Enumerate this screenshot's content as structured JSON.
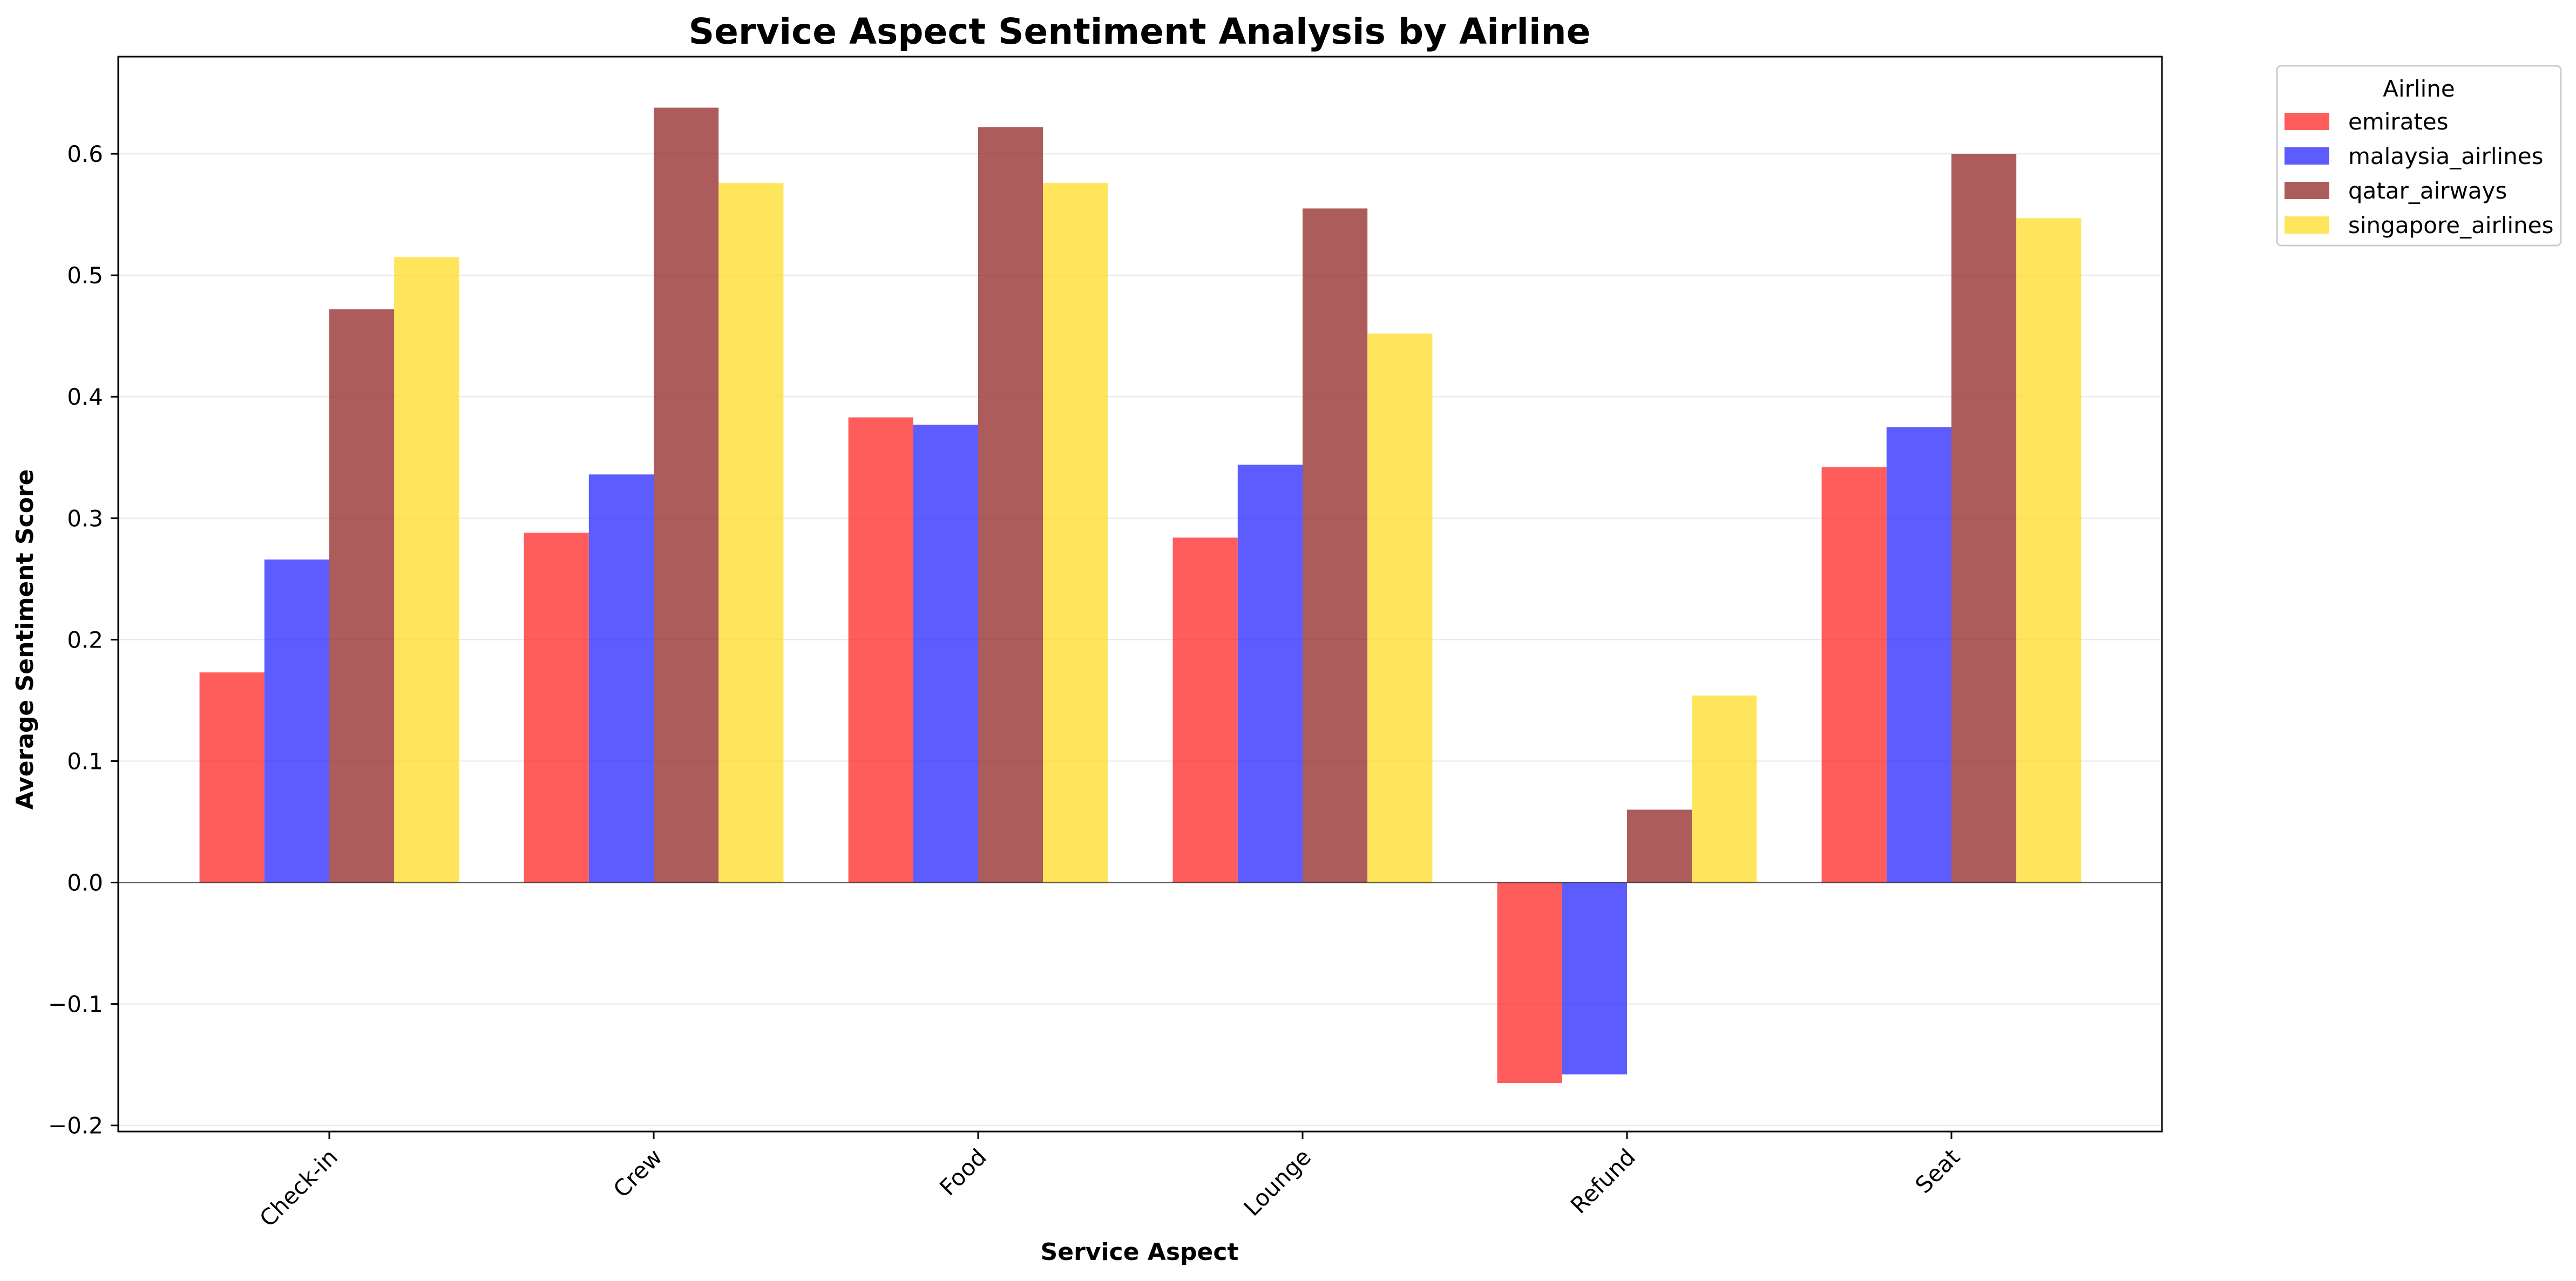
{
  "chart_data": {
    "type": "bar",
    "title": "Service Aspect Sentiment Analysis by Airline",
    "xlabel": "Service Aspect",
    "ylabel": "Average Sentiment Score",
    "categories": [
      "Check-in",
      "Crew",
      "Food",
      "Lounge",
      "Refund",
      "Seat"
    ],
    "series": [
      {
        "name": "emirates",
        "color": "#ff3333",
        "values": [
          0.173,
          0.288,
          0.383,
          0.284,
          -0.165,
          0.342
        ]
      },
      {
        "name": "malaysia_airlines",
        "color": "#3333ff",
        "values": [
          0.266,
          0.336,
          0.377,
          0.344,
          -0.158,
          0.375
        ]
      },
      {
        "name": "qatar_airways",
        "color": "#993333",
        "values": [
          0.472,
          0.638,
          0.622,
          0.555,
          0.06,
          0.6
        ]
      },
      {
        "name": "singapore_airlines",
        "color": "#ffdf33",
        "values": [
          0.515,
          0.576,
          0.576,
          0.452,
          0.154,
          0.547
        ]
      }
    ],
    "ylim": [
      -0.205,
      0.68
    ],
    "yticks": [
      -0.2,
      -0.1,
      0.0,
      0.1,
      0.2,
      0.3,
      0.4,
      0.5,
      0.6
    ],
    "ytick_labels": [
      "−0.2",
      "−0.1",
      "0.0",
      "0.1",
      "0.2",
      "0.3",
      "0.4",
      "0.5",
      "0.6"
    ],
    "grid": "horizontal",
    "legend": {
      "title": "Airline",
      "placement": "outside-top-right"
    }
  }
}
